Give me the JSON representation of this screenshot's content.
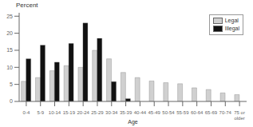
{
  "chart_data": {
    "type": "bar",
    "categories": [
      "0-4",
      "5-9",
      "10-14",
      "15-19",
      "20-24",
      "25-29",
      "30-34",
      "35-39",
      "40-44",
      "45-49",
      "50-54",
      "55-59",
      "60-64",
      "65-69",
      "70-74",
      "75 or\nolder"
    ],
    "series": [
      {
        "name": "Legal",
        "color": "#d0d0d0",
        "values": [
          5.9,
          7.0,
          9.0,
          10.5,
          10.0,
          15.0,
          12.5,
          8.5,
          7.0,
          6.0,
          5.5,
          5.2,
          4.0,
          3.5,
          2.5,
          2.0
        ]
      },
      {
        "name": "Illegal",
        "color": "#111111",
        "values": [
          12.5,
          16.5,
          11.5,
          17.0,
          23.0,
          18.5,
          5.8,
          0.8,
          0.0,
          0.0,
          0.0,
          0.0,
          0.0,
          0.0,
          0.0,
          0.0
        ]
      }
    ],
    "xlabel": "Age",
    "ylabel": "Percent",
    "ylim": [
      0,
      26
    ],
    "yticks": [
      0,
      5,
      10,
      15,
      20,
      25
    ],
    "legend": "upper right",
    "grid": false
  }
}
